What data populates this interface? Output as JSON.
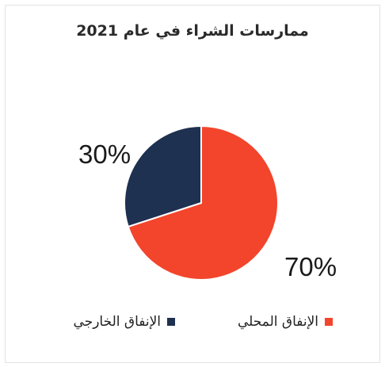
{
  "chart_data": {
    "type": "pie",
    "title": "ممارسات الشراء في عام 2021",
    "slices": [
      {
        "label": "الإنفاق المحلي",
        "value": 70,
        "display": "70%",
        "color": "#f2452c"
      },
      {
        "label": "الإنفاق الخارجي",
        "value": 30,
        "display": "30%",
        "color": "#1f3150"
      }
    ],
    "legend_position": "bottom"
  }
}
